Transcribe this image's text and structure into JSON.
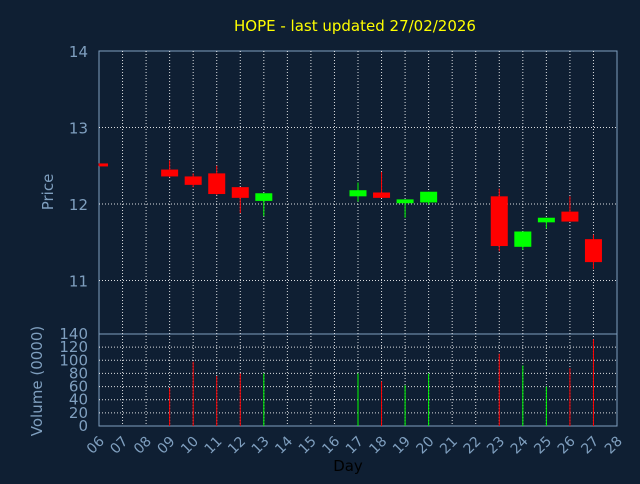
{
  "chart_data": [
    {
      "type": "candlestick",
      "title": "HOPE - last updated 27/02/2026",
      "ylabel": "Price",
      "ylim": [
        10.3,
        14
      ],
      "yticks": [
        11,
        12,
        13,
        14
      ],
      "x_ticks": [
        "06",
        "07",
        "08",
        "09",
        "10",
        "11",
        "12",
        "13",
        "14",
        "15",
        "16",
        "17",
        "18",
        "19",
        "20",
        "21",
        "22",
        "23",
        "24",
        "25",
        "26",
        "27",
        "28"
      ],
      "grid": true,
      "colors": {
        "up": "#00ff00",
        "down": "#ff0000",
        "title": "#ffff00",
        "axis_label": "#7f9fbf",
        "grid": "#ffffff"
      },
      "candles": [
        {
          "day": "06",
          "open": 12.53,
          "close": 12.5,
          "high": 12.53,
          "low": 12.5
        },
        {
          "day": "09",
          "open": 12.45,
          "close": 12.36,
          "high": 12.57,
          "low": 12.35
        },
        {
          "day": "10",
          "open": 12.36,
          "close": 12.25,
          "high": 12.4,
          "low": 12.22
        },
        {
          "day": "11",
          "open": 12.4,
          "close": 12.13,
          "high": 12.5,
          "low": 12.12
        },
        {
          "day": "12",
          "open": 12.22,
          "close": 12.08,
          "high": 12.22,
          "low": 11.88
        },
        {
          "day": "13",
          "open": 12.04,
          "close": 12.14,
          "high": 12.14,
          "low": 11.84
        },
        {
          "day": "17",
          "open": 12.1,
          "close": 12.18,
          "high": 12.28,
          "low": 12.03
        },
        {
          "day": "18",
          "open": 12.15,
          "close": 12.08,
          "high": 12.42,
          "low": 12.08
        },
        {
          "day": "19",
          "open": 12.01,
          "close": 12.06,
          "high": 12.06,
          "low": 11.82
        },
        {
          "day": "20",
          "open": 12.02,
          "close": 12.16,
          "high": 12.16,
          "low": 11.99
        },
        {
          "day": "23",
          "open": 12.1,
          "close": 11.45,
          "high": 12.2,
          "low": 11.38
        },
        {
          "day": "24",
          "open": 11.44,
          "close": 11.64,
          "high": 11.64,
          "low": 11.4
        },
        {
          "day": "25",
          "open": 11.76,
          "close": 11.82,
          "high": 11.82,
          "low": 11.68
        },
        {
          "day": "26",
          "open": 11.9,
          "close": 11.77,
          "high": 12.1,
          "low": 11.77
        },
        {
          "day": "27",
          "open": 11.54,
          "close": 11.24,
          "high": 11.6,
          "low": 11.15
        }
      ]
    },
    {
      "type": "bar",
      "ylabel": "Volume (0000)",
      "xlabel": "Day",
      "ylim": [
        0,
        140
      ],
      "yticks": [
        0,
        20,
        40,
        60,
        80,
        100,
        120,
        140
      ],
      "x_ticks": [
        "06",
        "07",
        "08",
        "09",
        "10",
        "11",
        "12",
        "13",
        "14",
        "15",
        "16",
        "17",
        "18",
        "19",
        "20",
        "21",
        "22",
        "23",
        "24",
        "25",
        "26",
        "27",
        "28"
      ],
      "grid": true,
      "bars": [
        {
          "day": "06",
          "value": 0,
          "direction": "down"
        },
        {
          "day": "09",
          "value": 58,
          "direction": "down"
        },
        {
          "day": "10",
          "value": 98,
          "direction": "down"
        },
        {
          "day": "11",
          "value": 76,
          "direction": "down"
        },
        {
          "day": "12",
          "value": 80,
          "direction": "down"
        },
        {
          "day": "13",
          "value": 80,
          "direction": "up"
        },
        {
          "day": "17",
          "value": 80,
          "direction": "up"
        },
        {
          "day": "18",
          "value": 68,
          "direction": "down"
        },
        {
          "day": "19",
          "value": 62,
          "direction": "up"
        },
        {
          "day": "20",
          "value": 80,
          "direction": "up"
        },
        {
          "day": "23",
          "value": 110,
          "direction": "down"
        },
        {
          "day": "24",
          "value": 92,
          "direction": "up"
        },
        {
          "day": "25",
          "value": 60,
          "direction": "up"
        },
        {
          "day": "26",
          "value": 88,
          "direction": "down"
        },
        {
          "day": "27",
          "value": 132,
          "direction": "down"
        }
      ]
    }
  ]
}
